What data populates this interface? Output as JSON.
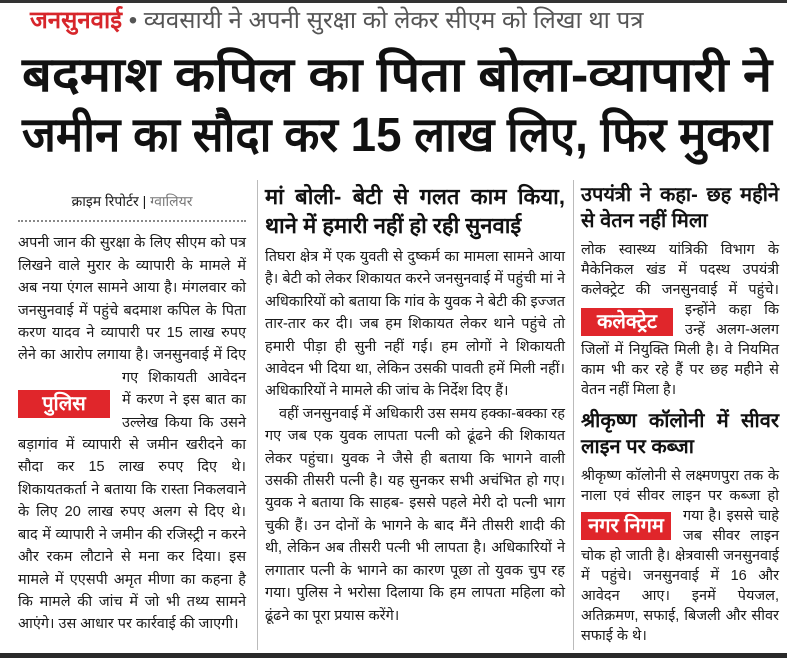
{
  "kicker": {
    "label": "जनसुनवाई",
    "bullet": "•",
    "text": "व्यवसायी ने अपनी सुरक्षा को लेकर सीएम को लिखा था पत्र"
  },
  "headline": {
    "line1": "बदमाश कपिल का पिता बोला-व्यापारी ने",
    "line2": "जमीन का सौदा कर 15 लाख लिए, फिर मुकरा"
  },
  "left": {
    "byline": "क्राइम रिपोर्टर",
    "byline_sep": "|",
    "city": "ग्वालियर",
    "badge": "पुलिस",
    "para1": "अपनी जान की सुरक्षा के लिए सीएम को पत्र लिखने वाले मुरार के व्यापारी के मामले में अब नया एंगल सामने आया है। मंगलवार को जनसुनवाई में पहुंचे बदमाश कपिल के पिता करण यादव ने व्यापारी पर 15 लाख रुपए लेने का आरोप लगाया है। जनसुनवाई में दिए गए शिकायती आवेदन में करण ने इस बात का उल्लेख किया कि उसने बड़ागांव में व्यापारी से जमीन खरीदने का सौदा कर 15 लाख रुपए दिए थे। शिकायतकर्ता ने बताया कि रास्ता निकलवाने के लिए 20 लाख रुपए अलग से दिए थे। बाद में व्यापारी ने जमीन की रजिस्ट्री न करने और रकम लौटाने से मना कर दिया। इस मामले में एएसपी अमृत मीणा का कहना है कि मामले की जांच में जो भी तथ्य सामने आएंगे। उस आधार पर कार्रवाई की जाएगी।"
  },
  "middle": {
    "subhead": "मां बोली- बेटी से गलत काम किया, थाने में हमारी नहीं हो रही सुनवाई",
    "para1": "तिघरा क्षेत्र में एक युवती से दुष्कर्म का मामला सामने आया है। बेटी को लेकर शिकायत करने जनसुनवाई में पहुंची मां ने अधिकारियों को बताया कि गांव के युवक ने बेटी की इज्जत तार-तार कर दी। जब हम शिकायत लेकर थाने पहुंचे तो हमारी पीड़ा ही सुनी नहीं गई। हम लोगों ने शिकायती आवेदन भी दिया था, लेकिन उसकी पावती हमें मिली नहीं। अधिकारियों ने मामले की जांच के निर्देश दिए हैं।",
    "para2": "वहीं जनसुनवाई में अधिकारी उस समय हक्का-बक्का रह गए जब एक युवक लापता पत्नी को ढूंढने की शिकायत लेकर पहुंचा। युवक ने जैसे ही बताया कि भागने वाली उसकी तीसरी पत्नी है। यह सुनकर सभी अचंभित हो गए। युवक ने बताया कि साहब- इससे पहले मेरी दो पत्नी भाग चुकी हैं। उन दोनों के भागने के बाद मैंने तीसरी शादी की थी, लेकिन अब तीसरी पत्नी भी लापता है। अधिकारियों ने लगातार पत्नी के भागने का कारण पूछा तो युवक चुप रह गया। पुलिस ने भरोसा दिलाया कि हम लापता महिला को ढूंढने का पूरा प्रयास करेंगे।"
  },
  "right": {
    "subhead1": "उपयंत्री ने कहा- छह महीने से वेतन नहीं मिला",
    "badge1": "कलेक्ट्रेट",
    "para1": "लोक स्वास्थ्य यांत्रिकी विभाग के मैकेनिकल खंड में पदस्थ उपयंत्री कलेक्ट्रेट की जनसुनवाई में पहुंचे। इन्होंने कहा कि उन्हें अलग-अलग जिलों में नियुक्ति मिली है। वे नियमित काम भी कर रहे हैं पर छह महीने से वेतन नहीं मिला है।",
    "subhead2": "श्रीकृष्ण कॉलोनी में सीवर लाइन पर कब्जा",
    "badge2": "नगर निगम",
    "para2": "श्रीकृष्ण कॉलोनी से लक्ष्मणपुरा तक के नाला एवं सीवर लाइन पर कब्जा हो गया है। इससे चाहे जब सीवर लाइन चोक हो जाती है। क्षेत्रवासी जनसुनवाई में पहुंचे। जनसुनवाई में 16 और आवेदन आए। इनमें पेयजल, अतिक्रमण, सफाई, बिजली और सीवर सफाई के थे।"
  },
  "colors": {
    "accent_red": "#e0262b",
    "kicker_red": "#d7262b"
  }
}
